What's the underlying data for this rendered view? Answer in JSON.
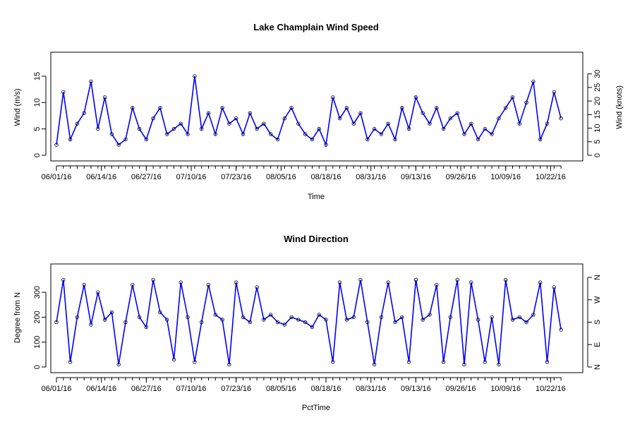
{
  "chart_data": [
    {
      "type": "line",
      "title": "Lake Champlain Wind Speed",
      "xlabel": "Time",
      "ylabel": "Wind (m/s)",
      "ylabel_right": "Wind (knots)",
      "x_ticks": [
        "06/01/16",
        "06/14/16",
        "06/27/16",
        "07/10/16",
        "07/23/16",
        "08/05/16",
        "08/18/16",
        "08/31/16",
        "09/13/16",
        "09/26/16",
        "10/09/16",
        "10/22/16"
      ],
      "x_range": [
        "06/01/16",
        "10/26/16"
      ],
      "ylim": [
        0,
        17
      ],
      "y_ticks": [
        "0",
        "5",
        "10",
        "15"
      ],
      "y_ticks_right": [
        "0",
        "5",
        "10",
        "15",
        "20",
        "25",
        "30"
      ],
      "series_color": "#0000ff",
      "marker": "open-circle",
      "series": [
        {
          "x": [
            "06/01/16",
            "06/03/16",
            "06/05/16",
            "06/07/16",
            "06/09/16",
            "06/11/16",
            "06/13/16",
            "06/15/16",
            "06/17/16",
            "06/19/16",
            "06/21/16",
            "06/23/16",
            "06/25/16",
            "06/27/16",
            "06/29/16",
            "07/01/16",
            "07/03/16",
            "07/05/16",
            "07/07/16",
            "07/09/16",
            "07/11/16",
            "07/13/16",
            "07/15/16",
            "07/17/16",
            "07/19/16",
            "07/21/16",
            "07/23/16",
            "07/25/16",
            "07/27/16",
            "07/29/16",
            "07/31/16",
            "08/02/16",
            "08/04/16",
            "08/06/16",
            "08/08/16",
            "08/10/16",
            "08/12/16",
            "08/14/16",
            "08/16/16",
            "08/18/16",
            "08/20/16",
            "08/22/16",
            "08/24/16",
            "08/26/16",
            "08/28/16",
            "08/30/16",
            "09/01/16",
            "09/03/16",
            "09/05/16",
            "09/07/16",
            "09/09/16",
            "09/11/16",
            "09/13/16",
            "09/15/16",
            "09/17/16",
            "09/19/16",
            "09/21/16",
            "09/23/16",
            "09/25/16",
            "09/27/16",
            "09/29/16",
            "10/01/16",
            "10/03/16",
            "10/05/16",
            "10/07/16",
            "10/09/16",
            "10/11/16",
            "10/13/16",
            "10/15/16",
            "10/17/16",
            "10/19/16",
            "10/21/16",
            "10/23/16",
            "10/25/16"
          ],
          "values": [
            2,
            12,
            3,
            6,
            8,
            14,
            5,
            11,
            4,
            2,
            3,
            9,
            5,
            3,
            7,
            9,
            4,
            5,
            6,
            4,
            15,
            5,
            8,
            4,
            9,
            6,
            7,
            4,
            8,
            5,
            6,
            4,
            3,
            7,
            9,
            6,
            4,
            3,
            5,
            2,
            11,
            7,
            9,
            6,
            8,
            3,
            5,
            4,
            6,
            3,
            9,
            5,
            11,
            8,
            6,
            9,
            5,
            7,
            8,
            4,
            6,
            3,
            5,
            4,
            7,
            9,
            11,
            6,
            10,
            14,
            3,
            6,
            12,
            7
          ]
        }
      ]
    },
    {
      "type": "line",
      "title": "Wind Direction",
      "xlabel": "PctTime",
      "ylabel": "Degree from N",
      "x_ticks": [
        "06/01/16",
        "06/14/16",
        "06/27/16",
        "07/10/16",
        "07/23/16",
        "08/05/16",
        "08/18/16",
        "08/31/16",
        "09/13/16",
        "09/26/16",
        "10/09/16",
        "10/22/16"
      ],
      "x_range": [
        "06/01/16",
        "10/26/16"
      ],
      "ylim": [
        0,
        360
      ],
      "y_ticks": [
        "0",
        "100",
        "200",
        "300"
      ],
      "y_ticks_right": [
        "N",
        "E",
        "S",
        "W",
        "N"
      ],
      "series_color": "#0000ff",
      "marker": "open-circle",
      "series": [
        {
          "x": [
            "06/01/16",
            "06/03/16",
            "06/05/16",
            "06/07/16",
            "06/09/16",
            "06/11/16",
            "06/13/16",
            "06/15/16",
            "06/17/16",
            "06/19/16",
            "06/21/16",
            "06/23/16",
            "06/25/16",
            "06/27/16",
            "06/29/16",
            "07/01/16",
            "07/03/16",
            "07/05/16",
            "07/07/16",
            "07/09/16",
            "07/11/16",
            "07/13/16",
            "07/15/16",
            "07/17/16",
            "07/19/16",
            "07/21/16",
            "07/23/16",
            "07/25/16",
            "07/27/16",
            "07/29/16",
            "07/31/16",
            "08/02/16",
            "08/04/16",
            "08/06/16",
            "08/08/16",
            "08/10/16",
            "08/12/16",
            "08/14/16",
            "08/16/16",
            "08/18/16",
            "08/20/16",
            "08/22/16",
            "08/24/16",
            "08/26/16",
            "08/28/16",
            "08/30/16",
            "09/01/16",
            "09/03/16",
            "09/05/16",
            "09/07/16",
            "09/09/16",
            "09/11/16",
            "09/13/16",
            "09/15/16",
            "09/17/16",
            "09/19/16",
            "09/21/16",
            "09/23/16",
            "09/25/16",
            "09/27/16",
            "09/29/16",
            "10/01/16",
            "10/03/16",
            "10/05/16",
            "10/07/16",
            "10/09/16",
            "10/11/16",
            "10/13/16",
            "10/15/16",
            "10/17/16",
            "10/19/16",
            "10/21/16",
            "10/23/16",
            "10/25/16"
          ],
          "values": [
            180,
            350,
            20,
            200,
            330,
            170,
            300,
            190,
            220,
            10,
            180,
            330,
            200,
            160,
            350,
            220,
            190,
            30,
            340,
            200,
            20,
            180,
            330,
            210,
            190,
            10,
            340,
            200,
            180,
            320,
            190,
            210,
            180,
            170,
            200,
            190,
            180,
            160,
            210,
            190,
            20,
            340,
            190,
            200,
            350,
            180,
            10,
            200,
            340,
            180,
            200,
            20,
            350,
            190,
            210,
            330,
            20,
            200,
            350,
            10,
            340,
            190,
            20,
            200,
            10,
            350,
            190,
            200,
            180,
            210,
            340,
            20,
            320,
            150
          ]
        }
      ]
    }
  ]
}
